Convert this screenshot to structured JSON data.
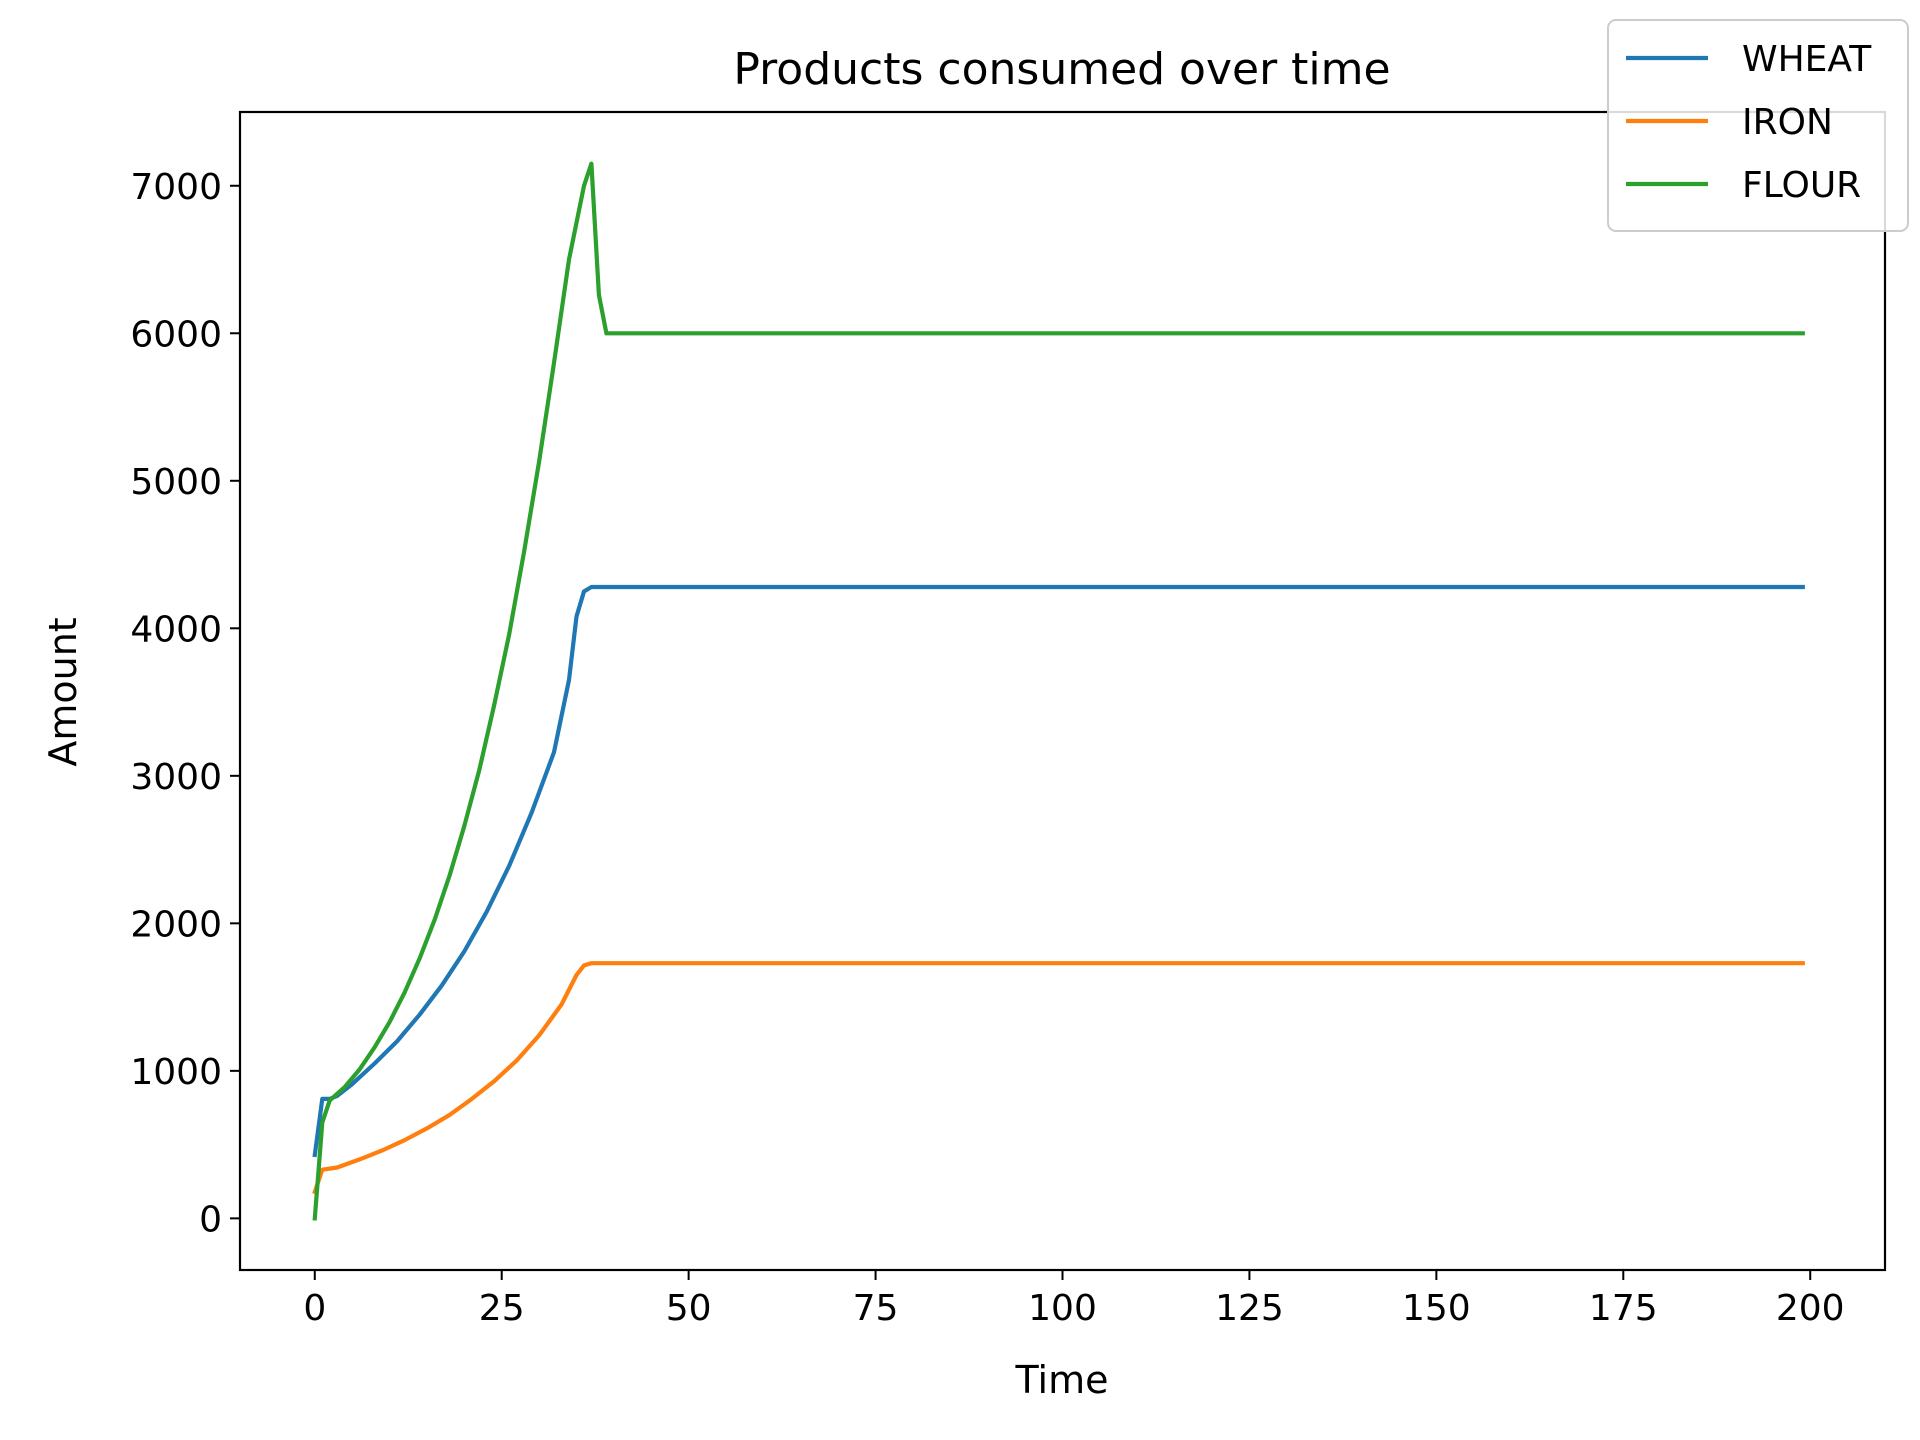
{
  "chart_data": {
    "type": "line",
    "title": "Products consumed over time",
    "xlabel": "Time",
    "ylabel": "Amount",
    "xlim": [
      -10,
      210
    ],
    "ylim": [
      -350,
      7500
    ],
    "xticks": [
      0,
      25,
      50,
      75,
      100,
      125,
      150,
      175,
      200
    ],
    "yticks": [
      0,
      1000,
      2000,
      3000,
      4000,
      5000,
      6000,
      7000
    ],
    "grid": false,
    "legend_position": "top-right",
    "series": [
      {
        "name": "WHEAT",
        "color": "#1f77b4",
        "points": [
          [
            0,
            430
          ],
          [
            1,
            810
          ],
          [
            2,
            810
          ],
          [
            3,
            830
          ],
          [
            5,
            910
          ],
          [
            8,
            1050
          ],
          [
            11,
            1200
          ],
          [
            14,
            1380
          ],
          [
            17,
            1580
          ],
          [
            20,
            1810
          ],
          [
            23,
            2080
          ],
          [
            26,
            2390
          ],
          [
            29,
            2750
          ],
          [
            32,
            3160
          ],
          [
            34,
            3650
          ],
          [
            35,
            4080
          ],
          [
            36,
            4250
          ],
          [
            37,
            4280
          ],
          [
            38,
            4280
          ],
          [
            199,
            4280
          ]
        ]
      },
      {
        "name": "IRON",
        "color": "#ff7f0e",
        "points": [
          [
            0,
            180
          ],
          [
            1,
            330
          ],
          [
            3,
            345
          ],
          [
            6,
            400
          ],
          [
            9,
            460
          ],
          [
            12,
            530
          ],
          [
            15,
            610
          ],
          [
            18,
            700
          ],
          [
            21,
            810
          ],
          [
            24,
            930
          ],
          [
            27,
            1070
          ],
          [
            30,
            1240
          ],
          [
            33,
            1450
          ],
          [
            35,
            1650
          ],
          [
            36,
            1715
          ],
          [
            37,
            1730
          ],
          [
            38,
            1730
          ],
          [
            199,
            1730
          ]
        ]
      },
      {
        "name": "FLOUR",
        "color": "#2ca02c",
        "points": [
          [
            0,
            0
          ],
          [
            1,
            650
          ],
          [
            2,
            800
          ],
          [
            4,
            890
          ],
          [
            6,
            1010
          ],
          [
            8,
            1160
          ],
          [
            10,
            1330
          ],
          [
            12,
            1530
          ],
          [
            14,
            1760
          ],
          [
            16,
            2020
          ],
          [
            18,
            2320
          ],
          [
            20,
            2660
          ],
          [
            22,
            3040
          ],
          [
            24,
            3480
          ],
          [
            26,
            3960
          ],
          [
            28,
            4520
          ],
          [
            30,
            5130
          ],
          [
            32,
            5800
          ],
          [
            34,
            6500
          ],
          [
            36,
            7000
          ],
          [
            37,
            7150
          ],
          [
            38,
            6260
          ],
          [
            39,
            6000
          ],
          [
            40,
            6000
          ],
          [
            199,
            6000
          ]
        ]
      }
    ]
  }
}
